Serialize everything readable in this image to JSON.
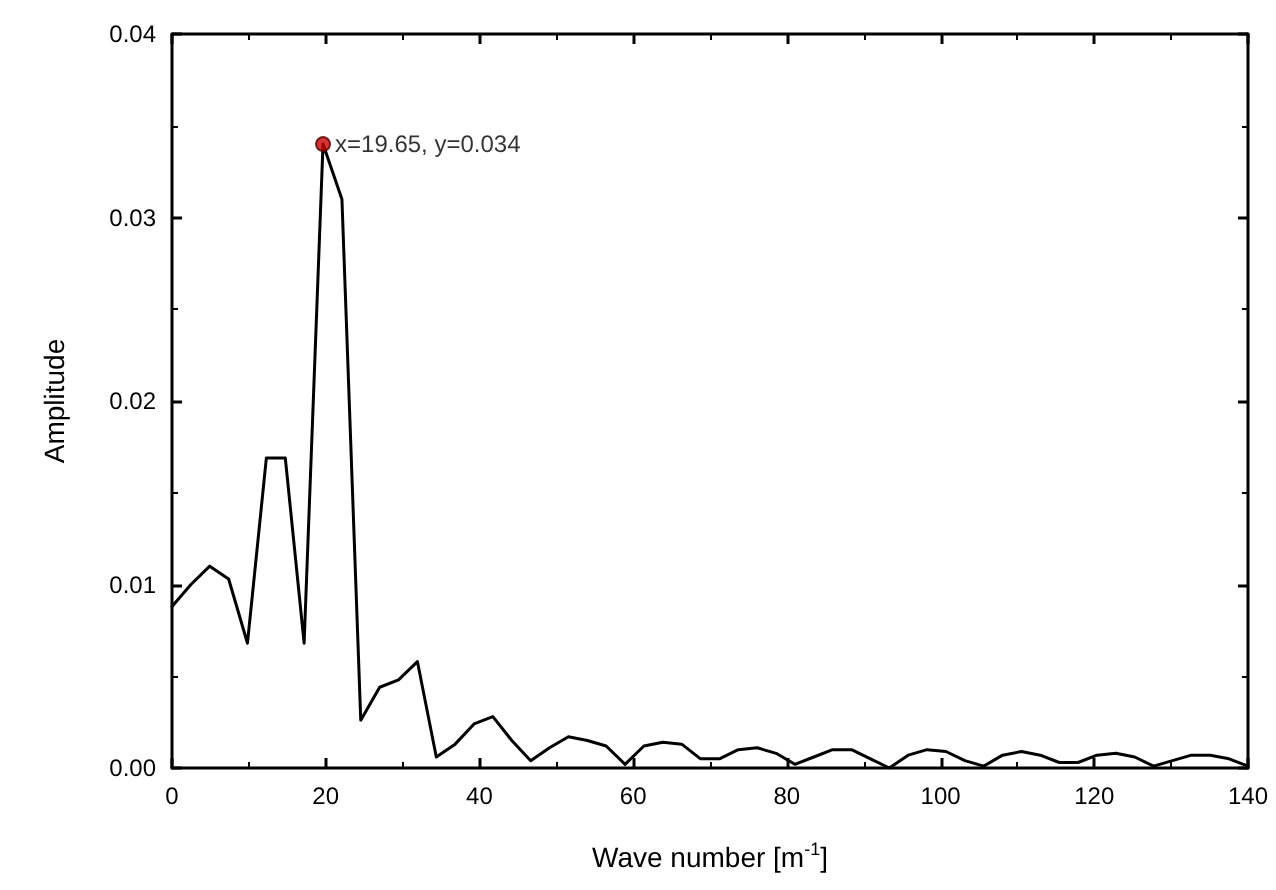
{
  "chart_data": {
    "type": "line",
    "xlabel": "Wave number [m$^{-1}$]",
    "ylabel": "Amplitude",
    "xlim": [
      0,
      140
    ],
    "xticks": [
      0,
      20,
      40,
      60,
      80,
      100,
      120,
      140
    ],
    "ylim": [
      0,
      0.04
    ],
    "yticks": [
      {
        "value": 0,
        "label": "0.00"
      },
      {
        "value": 0.01,
        "label": "0.01"
      },
      {
        "value": 0.02,
        "label": "0.02"
      },
      {
        "value": 0.03,
        "label": "0.03"
      },
      {
        "value": 0.04,
        "label": "0.04"
      }
    ],
    "grid": false,
    "marker": "none",
    "line_style": "solid",
    "series": [
      {
        "color": "#000000",
        "x": [
          0,
          2.46,
          4.91,
          7.37,
          9.82,
          12.28,
          14.74,
          17.19,
          19.65,
          22.11,
          24.56,
          27.02,
          29.47,
          31.93,
          34.39,
          36.84,
          39.3,
          41.75,
          44.21,
          46.67,
          49.12,
          51.58,
          54.04,
          56.49,
          58.95,
          61.4,
          63.86,
          66.32,
          68.77,
          71.23,
          73.68,
          76.14,
          78.6,
          81.05,
          83.51,
          85.96,
          88.42,
          90.88,
          93.33,
          95.79,
          98.25,
          100.7,
          103.16,
          105.61,
          108.07,
          110.53,
          112.98,
          115.44,
          117.89,
          120.35,
          122.81,
          125.26,
          127.72,
          130.18,
          132.63,
          135.09,
          137.54,
          140
        ],
        "values": [
          0.0088,
          0.01,
          0.011,
          0.0103,
          0.0068,
          0.0169,
          0.0169,
          0.0068,
          0.034,
          0.031,
          0.0026,
          0.0044,
          0.0048,
          0.0058,
          0.0006,
          0.0013,
          0.0024,
          0.0028,
          0.0015,
          0.0004,
          0.0011,
          0.0017,
          0.0015,
          0.0012,
          0.0002,
          0.0012,
          0.0014,
          0.0013,
          0.0005,
          0.0005,
          0.001,
          0.0011,
          0.0008,
          0.0002,
          0.0006,
          0.001,
          0.001,
          0.0005,
          0,
          0.0007,
          0.001,
          0.0009,
          0.0004,
          0.0001,
          0.0007,
          0.0009,
          0.0007,
          0.0003,
          0.0003,
          0.0007,
          0.0008,
          0.0006,
          0.0001,
          0.0004,
          0.0007,
          0.0007,
          0.0005,
          0.0001
        ]
      },
      {
        "type": "scatter",
        "color": "#cc0000",
        "marker": "circle",
        "x": [
          19.65
        ],
        "values": [
          0.034
        ]
      }
    ],
    "annotations": [
      {
        "text": "x=19.65, y=0.034",
        "x": 19.65,
        "y": 0.034
      }
    ]
  }
}
